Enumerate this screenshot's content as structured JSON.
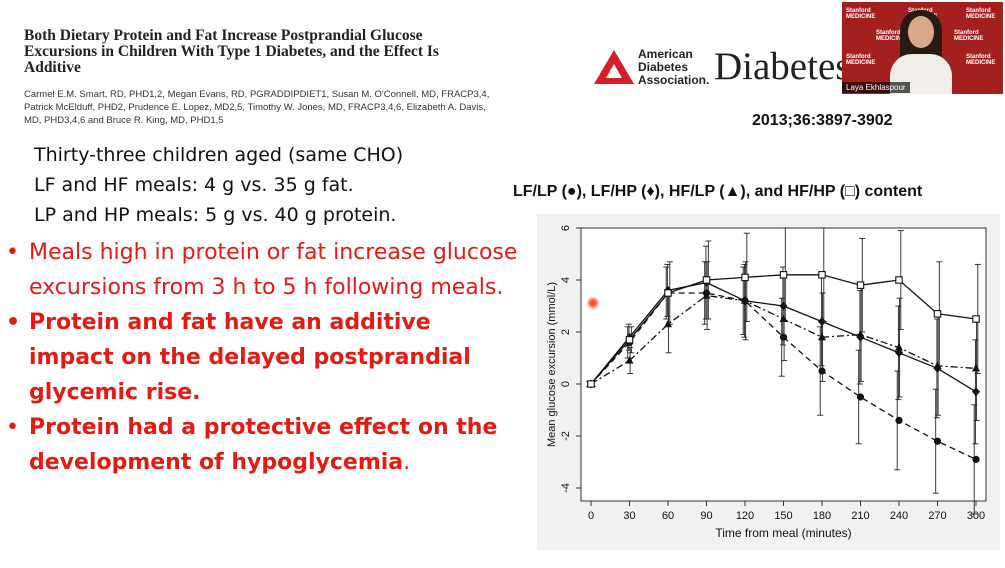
{
  "paper": {
    "title_line1": "Both Dietary Protein and Fat Increase Postprandial Glucose",
    "title_line2": "Excursions in Children With Type 1 Diabetes, and the Effect Is",
    "title_line3": "Additive",
    "authors_line1": "Carmel E.M. Smart, RD, PHD1,2, Megan Evans, RD, PGRADDIPDIET1, Susan M. O'Connell, MD, FRACP3,4,",
    "authors_line2": "Patrick McElduff, PHD2, Prudence E. Lopez, MD2,5, Timothy W. Jones, MD, FRACP3,4,6, Elizabeth A. Davis,",
    "authors_line3": "MD, PHD3,4,6 and Bruce R. King, MD, PHD1,5"
  },
  "logo": {
    "ada_line1": "American",
    "ada_line2": "Diabetes",
    "ada_line3": "Association.",
    "journal": "Diabetes",
    "brand_color": "#d4202a"
  },
  "citation": "2013;36:3897-3902",
  "video": {
    "speaker_name": "Laya Ekhlaspour",
    "tile_text": "Stanford MEDICINE",
    "bg_color": "#a3201e"
  },
  "info_lines": [
    "Thirty-three children aged (same CHO)",
    "LF and HF meals: 4 g vs. 35 g fat.",
    "LP and HP meals: 5 g vs. 40 g protein."
  ],
  "bullets": [
    "Meals high in protein or fat increase glucose excursions from 3 h to 5 h following meals.",
    "Protein and fat have an additive impact on the delayed postprandial glycemic rise.",
    "Protein had a protective effect on the development of hypoglycemia"
  ],
  "bullet3_suffix": ".",
  "accent_color": "#e31b12",
  "chart_heading": "LF/LP (●), LF/HP (♦), HF/LP (▲), and HF/HP (□) content",
  "chart_data": {
    "type": "line",
    "x": [
      0,
      30,
      60,
      90,
      120,
      150,
      180,
      210,
      240,
      270,
      300
    ],
    "xlabel": "Time from meal (minutes)",
    "ylabel": "Mean glucose excursion (mmol/L)",
    "xlim": [
      0,
      300
    ],
    "ylim": [
      -4.5,
      6
    ],
    "xticks": [
      "0",
      "30",
      "60",
      "90",
      "120",
      "150",
      "180",
      "210",
      "240",
      "270",
      "300"
    ],
    "yticks": [
      -4,
      -2,
      0,
      2,
      4,
      6
    ],
    "grid": false,
    "series": [
      {
        "name": "LF/LP",
        "marker": "circle-filled",
        "dash": "dashed",
        "values": [
          0,
          1.6,
          3.5,
          3.5,
          3.2,
          1.8,
          0.5,
          -0.5,
          -1.4,
          -2.2,
          -2.9
        ],
        "err": [
          0.1,
          0.6,
          1.0,
          1.2,
          1.3,
          1.5,
          1.7,
          1.8,
          1.9,
          2.0,
          2.1
        ]
      },
      {
        "name": "LF/HP",
        "marker": "diamond-filled",
        "dash": "solid",
        "values": [
          0,
          1.8,
          3.6,
          3.9,
          3.2,
          3.0,
          2.4,
          1.8,
          1.2,
          0.6,
          -0.3
        ],
        "err": [
          0.1,
          0.5,
          1.0,
          1.4,
          1.4,
          1.5,
          1.7,
          1.8,
          1.8,
          1.9,
          2.0
        ]
      },
      {
        "name": "HF/LP",
        "marker": "triangle-filled",
        "dash": "dashdot",
        "values": [
          0,
          0.9,
          2.3,
          3.4,
          3.2,
          2.5,
          1.8,
          1.9,
          1.4,
          0.7,
          0.6
        ],
        "err": [
          0.1,
          0.5,
          1.1,
          1.3,
          1.5,
          1.6,
          1.7,
          1.8,
          1.9,
          1.9,
          2.0
        ]
      },
      {
        "name": "HF/HP",
        "marker": "square-open",
        "dash": "solid",
        "values": [
          0,
          1.7,
          3.5,
          4.0,
          4.1,
          4.2,
          4.2,
          3.8,
          4.0,
          2.7,
          2.5
        ],
        "err": [
          0.1,
          0.5,
          1.2,
          1.5,
          1.7,
          1.8,
          1.8,
          1.8,
          1.9,
          2.0,
          2.1
        ]
      }
    ]
  }
}
